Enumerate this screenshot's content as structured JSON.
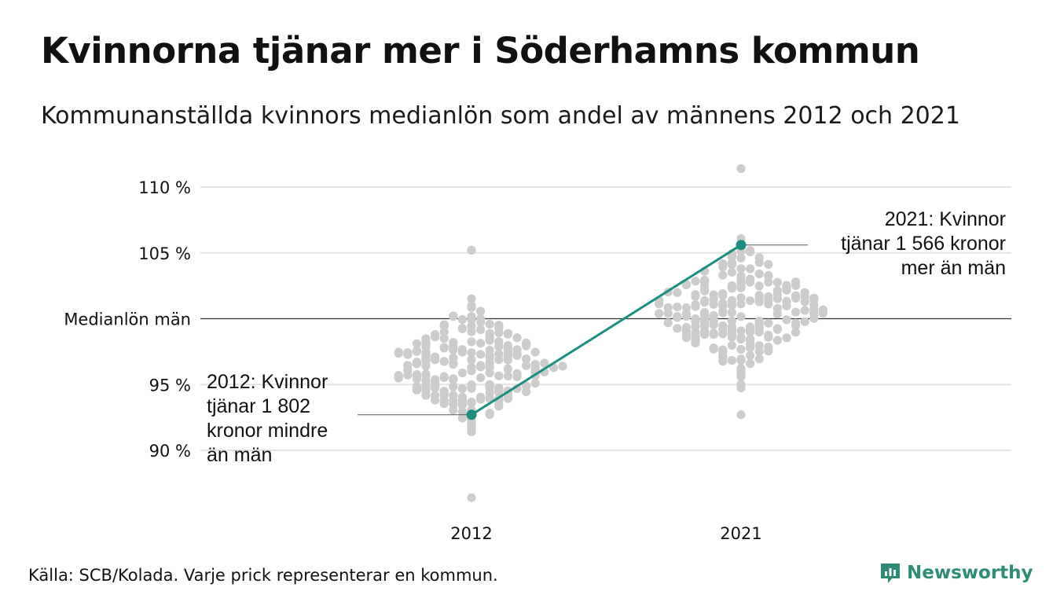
{
  "title": "Kvinnorna tjänar mer i Söderhamns kommun",
  "subtitle": "Kommunanställda kvinnors medianlön som andel av männens 2012 och 2021",
  "footer": "Källa: SCB/Kolada. Varje prick representerar en kommun.",
  "brand": {
    "name": "Newsworthy",
    "icon": "newsworthy-logo-icon",
    "color": "#2e8b76"
  },
  "colors": {
    "dots": "#cccccc",
    "highlight": "#1b8f7f",
    "grid": "#e3e3e3",
    "reference": "#333333"
  },
  "chart_data": {
    "type": "scatter",
    "x_categories": [
      "2012",
      "2021"
    ],
    "y_ticks": [
      {
        "value": 90,
        "label": "90 %"
      },
      {
        "value": 95,
        "label": "95 %"
      },
      {
        "value": 100,
        "label": "Medianlön män"
      },
      {
        "value": 105,
        "label": "105 %"
      },
      {
        "value": 110,
        "label": "110 %"
      }
    ],
    "ylim": [
      86,
      111.5
    ],
    "grid": true,
    "reference_line": {
      "value": 100,
      "label": "Medianlön män"
    },
    "distribution_note": "Each grey dot is one municipality (beeswarm), spanning roughly 86–105 % in 2012 and 93–111 % in 2021",
    "highlight": {
      "name": "Söderhamn",
      "values": [
        {
          "x": "2012",
          "y": 92.7
        },
        {
          "x": "2021",
          "y": 105.6
        }
      ]
    },
    "annotations": [
      {
        "x": "2012",
        "lines": [
          "2012: Kvinnor",
          "tjänar 1 802",
          "kronor mindre",
          "än män"
        ]
      },
      {
        "x": "2021",
        "lines": [
          "2021: Kvinnor",
          "tjänar 1 566 kronor",
          "mer än män"
        ]
      }
    ]
  }
}
